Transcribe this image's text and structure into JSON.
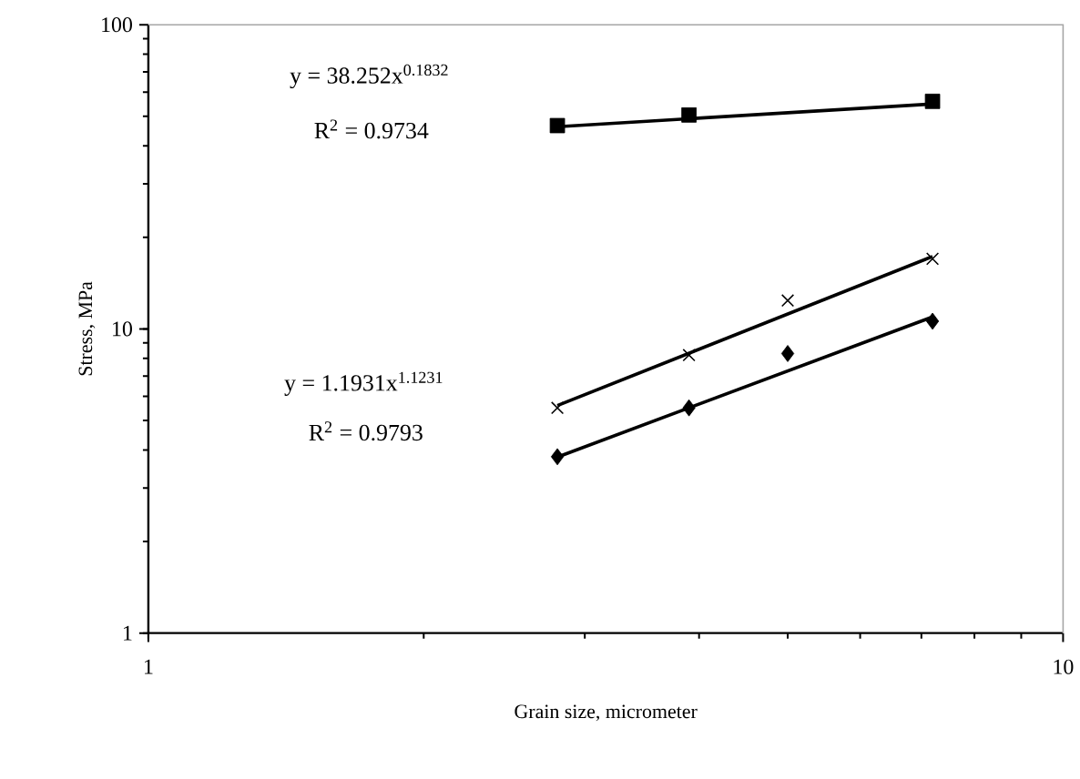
{
  "chart_data": {
    "type": "scatter",
    "xlabel": "Grain size, micrometer",
    "ylabel": "Stress, MPa",
    "log": "xy",
    "xlim": [
      1,
      10
    ],
    "ylim": [
      1,
      100
    ],
    "xticks": [
      1,
      10
    ],
    "yticks": [
      1,
      10,
      100
    ],
    "annotations": [
      "y = 38.252x$^{0.1832}$",
      "R$^{2}$ = 0.9734",
      "y = 1.1931x$^{1.1231}$",
      "R$^{2}$ = 0.9793"
    ],
    "series": [
      {
        "type": "line",
        "color": "#000000",
        "marker": "none",
        "x": [
          2.8,
          7.2
        ],
        "values": [
          46.2,
          54.9
        ]
      },
      {
        "type": "line",
        "color": "#000000",
        "marker": "none",
        "x": [
          2.8,
          7.2
        ],
        "values": [
          5.6,
          17.3
        ]
      },
      {
        "type": "line",
        "color": "#000000",
        "marker": "none",
        "x": [
          2.8,
          7.2
        ],
        "values": [
          3.79,
          10.95
        ]
      },
      {
        "color": "#000000",
        "marker": "square",
        "x": [
          2.8,
          3.9,
          7.2
        ],
        "values": [
          46.6,
          50.5,
          56
        ]
      },
      {
        "color": "#000000",
        "marker": "cross",
        "x": [
          2.8,
          3.9,
          5,
          7.2
        ],
        "values": [
          5.5,
          8.2,
          12.4,
          17
        ]
      },
      {
        "color": "#000000",
        "marker": "diamond",
        "x": [
          2.8,
          3.9,
          5,
          7.2
        ],
        "values": [
          3.8,
          5.5,
          8.3,
          10.6
        ]
      }
    ]
  }
}
